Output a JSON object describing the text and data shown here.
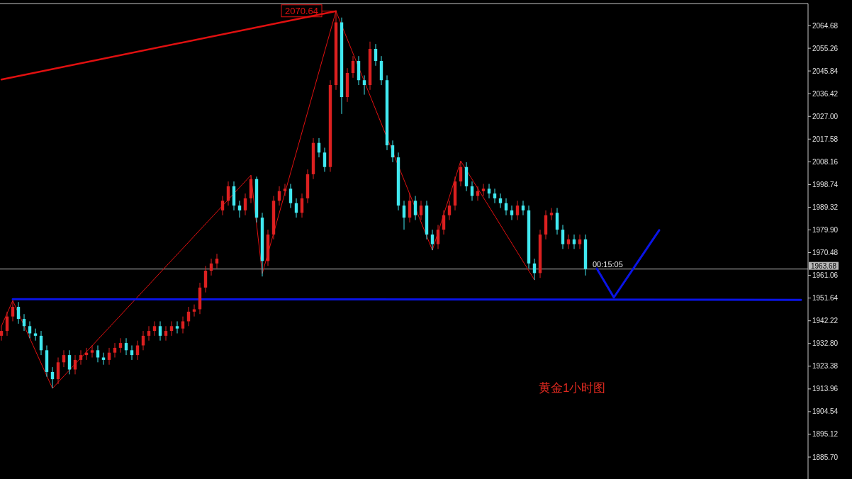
{
  "chart_data": {
    "type": "candlestick",
    "categories": [
      null,
      null,
      null,
      null,
      null,
      null,
      null,
      null,
      null,
      null,
      null,
      null,
      null,
      null,
      null,
      null,
      null,
      null,
      null,
      null,
      null,
      null,
      null,
      null,
      null,
      null,
      null,
      null,
      null,
      null,
      null,
      null,
      null,
      null,
      null,
      null,
      null,
      null,
      null,
      null,
      null,
      null,
      null,
      null,
      null,
      null,
      null,
      null,
      null,
      null,
      null,
      null,
      null,
      null,
      null,
      null,
      null,
      null,
      null,
      null,
      null,
      null,
      null,
      null,
      null,
      null,
      null,
      null,
      null,
      null,
      null,
      null,
      null,
      null,
      null,
      null,
      null,
      null,
      null,
      null,
      null,
      null,
      null,
      null,
      null,
      null,
      null,
      null,
      null,
      null,
      null,
      null,
      null,
      null,
      null,
      null,
      null,
      null,
      null,
      null,
      null,
      null,
      null,
      null,
      null,
      null,
      null,
      null,
      null,
      null,
      null,
      null,
      null,
      null,
      null,
      null,
      null,
      null,
      null,
      null,
      null,
      null,
      null,
      null,
      null,
      null,
      null,
      null,
      null,
      null,
      null,
      null,
      null,
      null,
      null,
      null,
      null,
      null,
      null,
      null,
      null,
      null,
      null
    ],
    "ohlc": [
      [
        1936,
        1940,
        1934,
        1938
      ],
      [
        1938,
        1946,
        1936,
        1944
      ],
      [
        1944,
        1950.6,
        1942,
        1948
      ],
      [
        1948,
        1950,
        1941,
        1943
      ],
      [
        1943,
        1945,
        1938,
        1940
      ],
      [
        1940,
        1942,
        1935,
        1937
      ],
      [
        1937,
        1939,
        1934,
        1936
      ],
      [
        1936,
        1938,
        1928,
        1930
      ],
      [
        1930,
        1932,
        1919,
        1921
      ],
      [
        1921,
        1923,
        1914.2,
        1918
      ],
      [
        1918,
        1927,
        1916,
        1925
      ],
      [
        1925,
        1930,
        1923,
        1928
      ],
      [
        1928,
        1930,
        1920,
        1922
      ],
      [
        1922,
        1928,
        1920,
        1926
      ],
      [
        1926,
        1930,
        1924,
        1928
      ],
      [
        1928,
        1931,
        1926,
        1929
      ],
      [
        1929,
        1932,
        1927,
        1930
      ],
      [
        1930,
        1932,
        1925,
        1927
      ],
      [
        1927,
        1929,
        1924,
        1926
      ],
      [
        1926,
        1931,
        1924,
        1929
      ],
      [
        1929,
        1933,
        1927,
        1931
      ],
      [
        1931,
        1935,
        1929,
        1933
      ],
      [
        1933,
        1935,
        1928,
        1930
      ],
      [
        1930,
        1932,
        1926,
        1928
      ],
      [
        1928,
        1934,
        1926,
        1932
      ],
      [
        1932,
        1938,
        1930,
        1936
      ],
      [
        1936,
        1940,
        1934,
        1938
      ],
      [
        1938,
        1942,
        1936,
        1940
      ],
      [
        1940,
        1942,
        1934,
        1936
      ],
      [
        1936,
        1940,
        1934,
        1938
      ],
      [
        1938,
        1942,
        1936,
        1940
      ],
      [
        1940,
        1942,
        1937,
        1939
      ],
      [
        1939,
        1944,
        1937,
        1942
      ],
      [
        1942,
        1948,
        1940,
        1946
      ],
      [
        1946,
        1949,
        1944,
        1947
      ],
      [
        1947,
        1958,
        1945,
        1956
      ],
      [
        1956,
        1965,
        1954,
        1963
      ],
      [
        1963,
        1968,
        1961,
        1966
      ],
      [
        1966,
        1970,
        1964,
        1968
      ],
      [
        1988,
        1994,
        1986,
        1992
      ],
      [
        1992,
        2000,
        1990,
        1998
      ],
      [
        1998,
        2000,
        1988,
        1990
      ],
      [
        1990,
        1992,
        1985,
        1988
      ],
      [
        1988,
        1995,
        1986,
        1993
      ],
      [
        1993,
        2002.6,
        1991,
        2001
      ],
      [
        2001,
        2002,
        1983,
        1985
      ],
      [
        1985,
        1987,
        1960.6,
        1967
      ],
      [
        1967,
        1980,
        1965,
        1978
      ],
      [
        1978,
        1994,
        1976,
        1992
      ],
      [
        1992,
        1998,
        1990,
        1996
      ],
      [
        1996,
        1999,
        1994,
        1997
      ],
      [
        1997,
        1999,
        1989,
        1991
      ],
      [
        1991,
        1993,
        1985,
        1987
      ],
      [
        1987,
        1995,
        1985,
        1993
      ],
      [
        1993,
        2005,
        1991,
        2003
      ],
      [
        2003,
        2018,
        2001,
        2016
      ],
      [
        2016,
        2018,
        2010,
        2012
      ],
      [
        2012,
        2014,
        2004,
        2006
      ],
      [
        2006,
        2042,
        2004,
        2040
      ],
      [
        2040,
        2070.64,
        2038,
        2066
      ],
      [
        2066,
        2068,
        2028,
        2035
      ],
      [
        2035,
        2047,
        2033,
        2045
      ],
      [
        2045,
        2052,
        2043,
        2050
      ],
      [
        2050,
        2052,
        2040,
        2042
      ],
      [
        2042,
        2044,
        2036,
        2040
      ],
      [
        2040,
        2058,
        2038,
        2055
      ],
      [
        2055,
        2057,
        2048,
        2050
      ],
      [
        2050,
        2052,
        2040,
        2042
      ],
      [
        2042,
        2044,
        2013,
        2015
      ],
      [
        2015,
        2017,
        2008,
        2010
      ],
      [
        2010,
        2012,
        1988,
        1990
      ],
      [
        1990,
        1992,
        1980,
        1985
      ],
      [
        1985,
        1995,
        1983,
        1992
      ],
      [
        1992,
        1994,
        1984,
        1986
      ],
      [
        1986,
        1992,
        1984,
        1990
      ],
      [
        1990,
        1992,
        1976,
        1978
      ],
      [
        1978,
        1980,
        1971.5,
        1974
      ],
      [
        1974,
        1982,
        1972,
        1980
      ],
      [
        1980,
        1988,
        1978,
        1986
      ],
      [
        1986,
        1992,
        1984,
        1990
      ],
      [
        1990,
        2002,
        1988,
        2000
      ],
      [
        2000,
        2008.5,
        1998,
        2006
      ],
      [
        2006,
        2008,
        1996,
        1998
      ],
      [
        1998,
        2000,
        1992,
        1994
      ],
      [
        1994,
        1998,
        1992,
        1996
      ],
      [
        1996,
        1999,
        1994,
        1997
      ],
      [
        1997,
        1999,
        1993,
        1995
      ],
      [
        1995,
        1997,
        1991,
        1993
      ],
      [
        1993,
        1995,
        1989,
        1991
      ],
      [
        1991,
        1993,
        1986,
        1988
      ],
      [
        1988,
        1990,
        1984,
        1986
      ],
      [
        1986,
        1992,
        1984,
        1990
      ],
      [
        1990,
        1992,
        1986,
        1988
      ],
      [
        1988,
        1990,
        1964,
        1966
      ],
      [
        1966,
        1968,
        1959.2,
        1962
      ],
      [
        1962,
        1980,
        1960,
        1978
      ],
      [
        1978,
        1988,
        1976,
        1986
      ],
      [
        1986,
        1989,
        1984,
        1987
      ],
      [
        1987,
        1989,
        1978,
        1980
      ],
      [
        1980,
        1982,
        1972,
        1974
      ],
      [
        1974,
        1978,
        1972,
        1976
      ],
      [
        1976,
        1978,
        1972,
        1974
      ],
      [
        1974,
        1978,
        1972,
        1976
      ],
      [
        1976,
        1978,
        1961,
        1963.68
      ],
      null,
      null,
      null,
      null,
      null,
      null,
      null,
      null,
      null,
      null,
      null,
      null,
      null,
      null,
      null,
      null,
      null,
      null,
      null,
      null,
      null,
      null,
      null,
      null,
      null,
      null,
      null,
      null,
      null,
      null,
      null,
      null,
      null,
      null,
      null,
      null,
      null,
      null,
      null
    ],
    "colors": [
      "#dc2020",
      "#dc2020",
      "#dc2020",
      "#40e8f0",
      "#40e8f0",
      "#40e8f0",
      "#40e8f0",
      "#40e8f0",
      "#40e8f0",
      "#40e8f0",
      "#dc2020",
      "#dc2020",
      "#40e8f0",
      "#dc2020",
      "#dc2020",
      "#dc2020",
      "#dc2020",
      "#40e8f0",
      "#40e8f0",
      "#dc2020",
      "#dc2020",
      "#dc2020",
      "#40e8f0",
      "#40e8f0",
      "#dc2020",
      "#dc2020",
      "#dc2020",
      "#dc2020",
      "#40e8f0",
      "#dc2020",
      "#dc2020",
      "#40e8f0",
      "#dc2020",
      "#dc2020",
      "#dc2020",
      "#dc2020",
      "#dc2020",
      "#dc2020",
      "#dc2020",
      "#dc2020",
      "#dc2020",
      "#40e8f0",
      "#40e8f0",
      "#dc2020",
      "#dc2020",
      "#40e8f0",
      "#40e8f0",
      "#dc2020",
      "#dc2020",
      "#dc2020",
      "#dc2020",
      "#40e8f0",
      "#40e8f0",
      "#dc2020",
      "#dc2020",
      "#dc2020",
      "#40e8f0",
      "#40e8f0",
      "#dc2020",
      "#dc2020",
      "#40e8f0",
      "#dc2020",
      "#dc2020",
      "#40e8f0",
      "#40e8f0",
      "#dc2020",
      "#40e8f0",
      "#40e8f0",
      "#40e8f0",
      "#40e8f0",
      "#40e8f0",
      "#40e8f0",
      "#dc2020",
      "#40e8f0",
      "#dc2020",
      "#40e8f0",
      "#40e8f0",
      "#dc2020",
      "#dc2020",
      "#dc2020",
      "#dc2020",
      "#dc2020",
      "#40e8f0",
      "#40e8f0",
      "#dc2020",
      "#dc2020",
      "#40e8f0",
      "#40e8f0",
      "#40e8f0",
      "#40e8f0",
      "#40e8f0",
      "#dc2020",
      "#40e8f0",
      "#40e8f0",
      "#40e8f0",
      "#dc2020",
      "#dc2020",
      "#dc2020",
      "#40e8f0",
      "#40e8f0",
      "#dc2020",
      "#40e8f0",
      "#dc2020",
      "#40e8f0",
      null,
      null,
      null,
      null,
      null,
      null,
      null,
      null,
      null,
      null,
      null,
      null,
      null,
      null,
      null,
      null,
      null,
      null,
      null,
      null,
      null,
      null,
      null,
      null,
      null,
      null,
      null,
      null,
      null,
      null,
      null,
      null,
      null,
      null,
      null,
      null,
      null,
      null,
      null
    ],
    "series": [
      {
        "type": "line",
        "color": "#e01010",
        "values": [
          2042.3,
          null,
          null,
          null,
          null,
          null,
          null,
          null,
          null,
          null,
          null,
          null,
          null,
          null,
          null,
          null,
          null,
          null,
          null,
          null,
          null,
          null,
          null,
          null,
          null,
          null,
          null,
          null,
          null,
          null,
          null,
          null,
          null,
          null,
          null,
          null,
          null,
          null,
          null,
          null,
          null,
          null,
          null,
          null,
          null,
          null,
          null,
          null,
          null,
          null,
          null,
          null,
          null,
          null,
          null,
          null,
          null,
          null,
          null,
          2070.64,
          null,
          null,
          null,
          null,
          null,
          null,
          null,
          null,
          null,
          null,
          null,
          null,
          null,
          null,
          null,
          null,
          null,
          null,
          null,
          null,
          null,
          null,
          null,
          null,
          null,
          null,
          null,
          null,
          null,
          null,
          null,
          null,
          null,
          null,
          null,
          null,
          null,
          null,
          null,
          null,
          null,
          null,
          null,
          null,
          null,
          null,
          null,
          null,
          null,
          null,
          null,
          null,
          null,
          null,
          null,
          null,
          null,
          null,
          null,
          null,
          null,
          null,
          null,
          null,
          null,
          null,
          null,
          null,
          null,
          null,
          null,
          null,
          null,
          null,
          null,
          null,
          null,
          null,
          null,
          null,
          null,
          null,
          null
        ]
      },
      {
        "type": "line",
        "color": "#e01010",
        "values": [
          1940,
          null,
          1950.6,
          null,
          null,
          null,
          null,
          null,
          null,
          1914.2,
          null,
          null,
          null,
          null,
          null,
          null,
          null,
          null,
          null,
          null,
          null,
          null,
          null,
          null,
          null,
          null,
          null,
          null,
          null,
          null,
          null,
          null,
          null,
          null,
          null,
          null,
          null,
          null,
          null,
          null,
          null,
          null,
          null,
          null,
          2002.6,
          null,
          1961.8,
          null,
          null,
          null,
          null,
          null,
          null,
          null,
          null,
          null,
          null,
          null,
          null,
          2070.64,
          null,
          null,
          null,
          null,
          null,
          null,
          null,
          null,
          null,
          null,
          null,
          null,
          null,
          null,
          null,
          null,
          1971.5,
          null,
          null,
          null,
          null,
          2008.5,
          null,
          null,
          null,
          null,
          null,
          null,
          null,
          null,
          null,
          null,
          null,
          null,
          1959.2,
          null,
          null,
          null,
          null,
          null,
          null,
          null,
          null,
          null,
          null,
          null,
          null,
          null,
          null,
          null,
          null,
          null,
          null,
          null,
          null,
          null,
          null,
          null,
          null,
          null,
          null,
          null,
          null,
          null,
          null,
          null,
          null,
          null,
          null,
          null,
          null,
          null,
          null,
          null,
          null,
          null,
          null,
          null,
          null,
          null,
          null,
          null,
          null
        ]
      },
      {
        "type": "line",
        "color": "#0a14e6",
        "values": [
          null,
          null,
          1951.2,
          null,
          null,
          null,
          null,
          null,
          null,
          null,
          null,
          null,
          null,
          null,
          null,
          null,
          null,
          null,
          null,
          null,
          null,
          null,
          null,
          null,
          null,
          null,
          null,
          null,
          null,
          null,
          null,
          null,
          null,
          null,
          null,
          null,
          null,
          null,
          null,
          null,
          null,
          null,
          null,
          null,
          null,
          null,
          null,
          null,
          null,
          null,
          null,
          null,
          null,
          null,
          null,
          null,
          null,
          null,
          null,
          null,
          null,
          null,
          null,
          null,
          null,
          null,
          null,
          null,
          null,
          null,
          null,
          null,
          null,
          null,
          null,
          null,
          null,
          null,
          null,
          null,
          null,
          null,
          null,
          null,
          null,
          null,
          null,
          null,
          null,
          null,
          null,
          null,
          null,
          null,
          null,
          null,
          null,
          null,
          null,
          null,
          null,
          null,
          null,
          null,
          null,
          null,
          null,
          null,
          null,
          null,
          null,
          null,
          null,
          null,
          null,
          null,
          null,
          null,
          null,
          null,
          null,
          null,
          null,
          null,
          null,
          null,
          null,
          null,
          null,
          null,
          null,
          null,
          null,
          null,
          null,
          null,
          null,
          null,
          null,
          null,
          null,
          1950.9,
          null
        ]
      },
      {
        "type": "line",
        "color": "#0a14e6",
        "values": [
          null,
          null,
          null,
          null,
          null,
          null,
          null,
          null,
          null,
          null,
          null,
          null,
          null,
          null,
          null,
          null,
          null,
          null,
          null,
          null,
          null,
          null,
          null,
          null,
          null,
          null,
          null,
          null,
          null,
          null,
          null,
          null,
          null,
          null,
          null,
          null,
          null,
          null,
          null,
          null,
          null,
          null,
          null,
          null,
          null,
          null,
          null,
          null,
          null,
          null,
          null,
          null,
          null,
          null,
          null,
          null,
          null,
          null,
          null,
          null,
          null,
          null,
          null,
          null,
          null,
          null,
          null,
          null,
          null,
          null,
          null,
          null,
          null,
          null,
          null,
          null,
          null,
          null,
          null,
          null,
          null,
          null,
          null,
          null,
          null,
          null,
          null,
          null,
          null,
          null,
          null,
          null,
          null,
          null,
          null,
          null,
          null,
          null,
          null,
          null,
          null,
          null,
          null,
          null,
          null,
          1963.9,
          null,
          null,
          1951.9,
          null,
          null,
          null,
          null,
          null,
          null,
          null,
          1979.8,
          null,
          null,
          null,
          null,
          null,
          null,
          null,
          null,
          null,
          null,
          null,
          null,
          null,
          null,
          null,
          null,
          null,
          null,
          null,
          null,
          null,
          null,
          null,
          null,
          null,
          null
        ]
      }
    ],
    "ylim": [
      1876.6,
      2073.8
    ],
    "yticks": [
      2064.68,
      2055.26,
      2045.84,
      2036.42,
      {
        "value": 2027,
        "label": "2027.00"
      },
      2017.58,
      2008.16,
      1998.74,
      1989.32,
      {
        "value": 1979.9,
        "label": "1979.90"
      },
      1970.48,
      1961.06,
      1951.64,
      1942.22,
      {
        "value": 1932.8,
        "label": "1932.80"
      },
      1923.38,
      1913.96,
      1904.54,
      1895.12,
      {
        "value": 1885.7,
        "label": "1885.70"
      }
    ],
    "ref_lines": [
      {
        "axis": "y",
        "value": 1963.68,
        "label": "1963.68",
        "color": "#b8b8b8"
      }
    ],
    "annotations": [
      "2070.64",
      "00:15:05",
      "黄金1小时图"
    ],
    "grid": false
  }
}
